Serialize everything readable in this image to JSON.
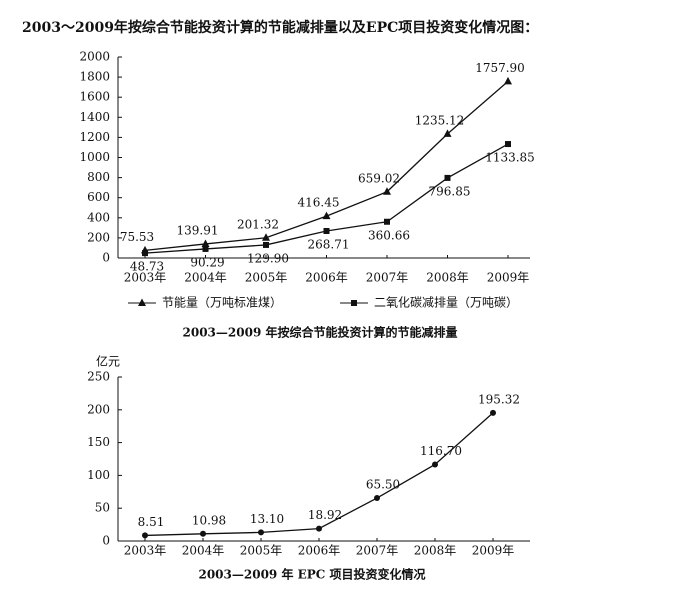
{
  "heading": "2003～2009年按综合节能投资计算的节能减排量以及EPC项目投资变化情况图：",
  "chart_data": [
    {
      "type": "line",
      "title": "2003—2009 年按综合节能投资计算的节能减排量",
      "categories": [
        "2003年",
        "2004年",
        "2005年",
        "2006年",
        "2007年",
        "2008年",
        "2009年"
      ],
      "series": [
        {
          "name": "节能量（万吨标准煤）",
          "color": "#111111",
          "marker": "triangle",
          "values": [
            75.53,
            139.91,
            201.32,
            416.45,
            659.02,
            1235.12,
            1757.9
          ],
          "value_labels": [
            "75.53",
            "139.91",
            "201.32",
            "416.45",
            "659.02",
            "1235.12",
            "1757.90"
          ]
        },
        {
          "name": "二氧化碳减排量（万吨碳）",
          "color": "#111111",
          "marker": "square",
          "values": [
            48.73,
            90.29,
            129.9,
            268.71,
            360.66,
            796.85,
            1133.85
          ],
          "value_labels": [
            "48.73",
            "90.29",
            "129.90",
            "268.71",
            "360.66",
            "796.85",
            "1133.85"
          ]
        }
      ],
      "ylim": [
        0,
        2000
      ],
      "yticks": [
        0,
        200,
        400,
        600,
        800,
        1000,
        1200,
        1400,
        1600,
        1800,
        2000
      ],
      "grid": false,
      "legend": "bottom"
    },
    {
      "type": "line",
      "title": "2003—2009 年 EPC 项目投资变化情况",
      "ylabel": "亿元",
      "categories": [
        "2003年",
        "2004年",
        "2005年",
        "2006年",
        "2007年",
        "2008年",
        "2009年"
      ],
      "series": [
        {
          "color": "#111111",
          "marker": "circle",
          "values": [
            8.51,
            10.98,
            13.1,
            18.92,
            65.5,
            116.7,
            195.32
          ],
          "value_labels": [
            "8.51",
            "10.98",
            "13.10",
            "18.92",
            "65.50",
            "116.70",
            "195.32"
          ]
        }
      ],
      "ylim": [
        0,
        250
      ],
      "yticks": [
        0,
        50,
        100,
        150,
        200,
        250
      ],
      "grid": false
    }
  ]
}
